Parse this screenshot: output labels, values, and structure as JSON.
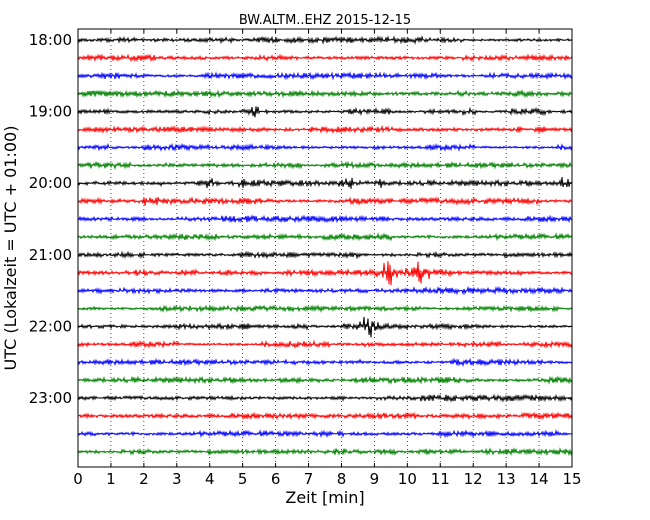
{
  "chart_data": {
    "type": "line",
    "title": "BW.ALTM..EHZ 2015-12-15",
    "xlabel": "Zeit  [min]",
    "ylabel": "UTC (Lokalzeit = UTC + 01:00)",
    "xlim": [
      0,
      15
    ],
    "x_ticks": [
      "0",
      "1",
      "2",
      "3",
      "4",
      "5",
      "6",
      "7",
      "8",
      "9",
      "10",
      "11",
      "12",
      "13",
      "14",
      "15"
    ],
    "y_tick_labels": [
      "18:00",
      "19:00",
      "20:00",
      "21:00",
      "22:00",
      "23:00"
    ],
    "grid": "vertical-dotted",
    "trace_colors": [
      "#000000",
      "#ff0000",
      "#0000ff",
      "#008000"
    ],
    "traces_per_hour": 4,
    "trace_start_times": [
      "18:00",
      "18:15",
      "18:30",
      "18:45",
      "19:00",
      "19:15",
      "19:30",
      "19:45",
      "20:00",
      "20:15",
      "20:30",
      "20:45",
      "21:00",
      "21:15",
      "21:30",
      "21:45",
      "22:00",
      "22:15",
      "22:30",
      "22:45",
      "23:00",
      "23:15",
      "23:30",
      "23:45"
    ],
    "events": [
      {
        "trace": "19:00",
        "minute": 5.4
      },
      {
        "trace": "20:00",
        "minute": 4.0
      },
      {
        "trace": "20:00",
        "minute": 5.0
      },
      {
        "trace": "20:00",
        "minute": 8.2
      },
      {
        "trace": "20:00",
        "minute": 9.1
      },
      {
        "trace": "20:00",
        "minute": 14.8
      },
      {
        "trace": "20:15",
        "minute": 2.1
      },
      {
        "trace": "21:15",
        "minute": 9.4
      },
      {
        "trace": "21:15",
        "minute": 10.3
      },
      {
        "trace": "21:15",
        "minute": 11.0
      },
      {
        "trace": "22:00",
        "minute": 8.8
      }
    ]
  }
}
